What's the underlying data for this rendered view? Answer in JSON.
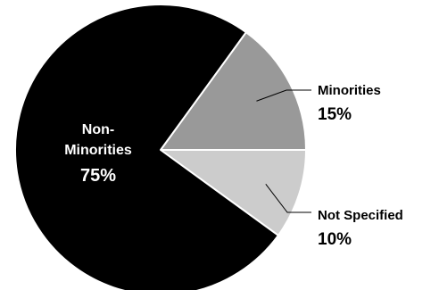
{
  "chart_data": {
    "type": "pie",
    "title": "",
    "slices": [
      {
        "label": "Non-Minorities",
        "label_lines": [
          "Non-",
          "Minorities"
        ],
        "value": 75,
        "value_label": "75%",
        "color": "#000000"
      },
      {
        "label": "Minorities",
        "label_lines": [
          "Minorities"
        ],
        "value": 15,
        "value_label": "15%",
        "color": "#999999"
      },
      {
        "label": "Not Specified",
        "label_lines": [
          "Not Specified"
        ],
        "value": 10,
        "value_label": "10%",
        "color": "#cccccc"
      }
    ],
    "slice_border_color": "#ffffff",
    "label_text_colors": {
      "inside": "#ffffff",
      "outside": "#000000"
    },
    "leader_line_color": "#000000"
  }
}
